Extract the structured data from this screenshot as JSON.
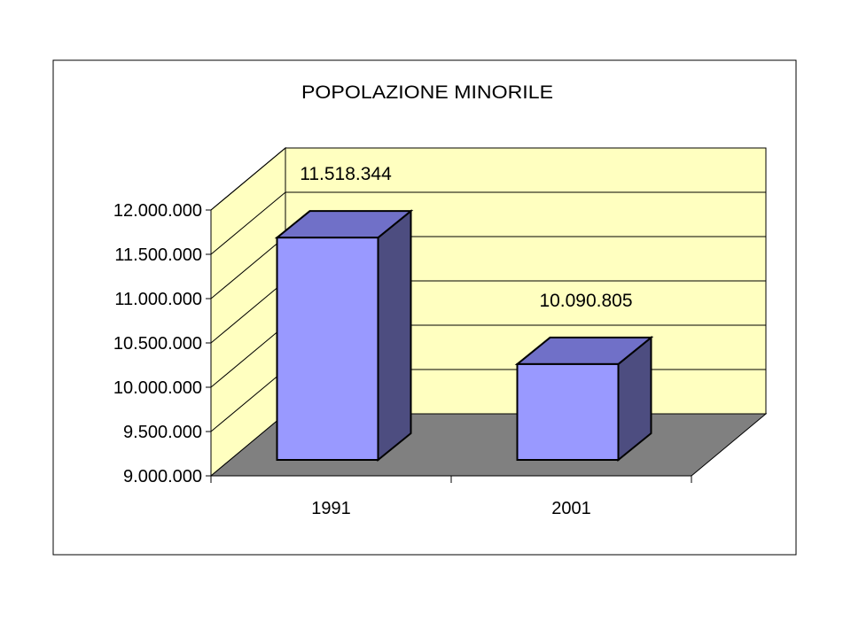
{
  "chart_data": {
    "type": "bar",
    "style": "3d-column",
    "title": "POPOLAZIONE MINORILE",
    "xlabel": "",
    "ylabel": "",
    "categories": [
      "1991",
      "2001"
    ],
    "values": [
      11518344,
      10090805
    ],
    "data_labels": [
      "11.518.344",
      "10.090.805"
    ],
    "ylim": [
      9000000,
      12000000
    ],
    "ytick_values": [
      9000000,
      9500000,
      10000000,
      10500000,
      11000000,
      11500000,
      12000000
    ],
    "ytick_labels": [
      "9.000.000",
      "9.500.000",
      "10.000.000",
      "10.500.000",
      "11.000.000",
      "11.500.000",
      "12.000.000"
    ],
    "grid": true,
    "legend": "none",
    "colors": {
      "wall": "#FFFFC0",
      "floor": "#808080",
      "bar_front": "#9999FF",
      "bar_top": "#7070C8",
      "bar_side": "#4D4D80",
      "outline": "#000000"
    }
  }
}
